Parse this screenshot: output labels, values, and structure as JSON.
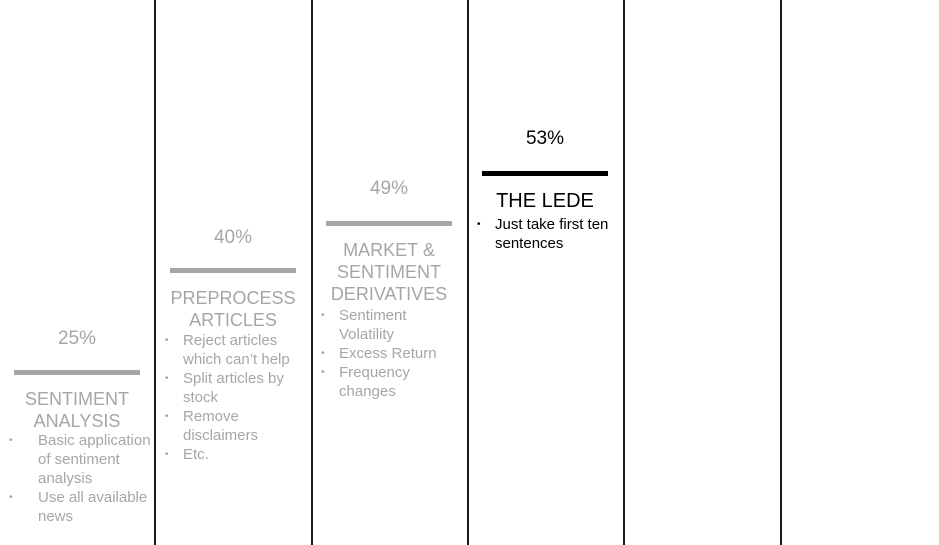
{
  "stages": [
    {
      "percent": "25%",
      "title_line1": "SENTIMENT",
      "title_line2": "ANALYSIS",
      "bullets": [
        "Basic application of sentiment analysis",
        "Use all available news"
      ]
    },
    {
      "percent": "40%",
      "title_line1": "PREPROCESS",
      "title_line2": "ARTICLES",
      "bullets": [
        "Reject articles which can’t help",
        "Split articles by stock",
        "Remove disclaimers",
        "Etc."
      ]
    },
    {
      "percent": "49%",
      "title_line1": "MARKET &",
      "title_line2": "SENTIMENT",
      "title_line3": "DERIVATIVES",
      "bullets": [
        "Sentiment Volatility",
        "Excess Return",
        "Frequency changes"
      ]
    },
    {
      "percent": "53%",
      "title_line1": "THE LEDE",
      "bullets": [
        "Just take first ten sentences"
      ]
    }
  ],
  "bullet_symbol": "•",
  "colors": {
    "inactive": "#a6a6a6",
    "active": "#000000",
    "divider": "#1a1a1a"
  }
}
